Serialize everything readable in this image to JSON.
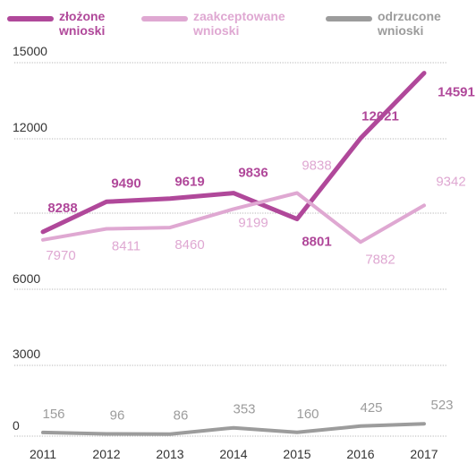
{
  "chart_data": {
    "type": "line",
    "title": "",
    "xlabel": "",
    "ylabel": "",
    "x": [
      "2011",
      "2012",
      "2013",
      "2014",
      "2015",
      "2016",
      "2017"
    ],
    "y_ticks": [
      "15000",
      "12000",
      "6000",
      "3000",
      "0"
    ],
    "series": [
      {
        "name_line1": "złożone",
        "name_line2": "wnioski",
        "color": "#B0489A",
        "values": [
          8288,
          9490,
          9619,
          9836,
          8801,
          12021,
          14591
        ]
      },
      {
        "name_line1": "zaakceptowane",
        "name_line2": "wnioski",
        "color": "#DFA8D2",
        "values": [
          7970,
          8411,
          8460,
          9199,
          9838,
          7882,
          9342
        ]
      },
      {
        "name_line1": "odrzucone",
        "name_line2": "wnioski",
        "color": "#9C9C9C",
        "values": [
          156,
          96,
          86,
          353,
          160,
          425,
          523
        ]
      }
    ],
    "grid": true,
    "legend": "top"
  }
}
